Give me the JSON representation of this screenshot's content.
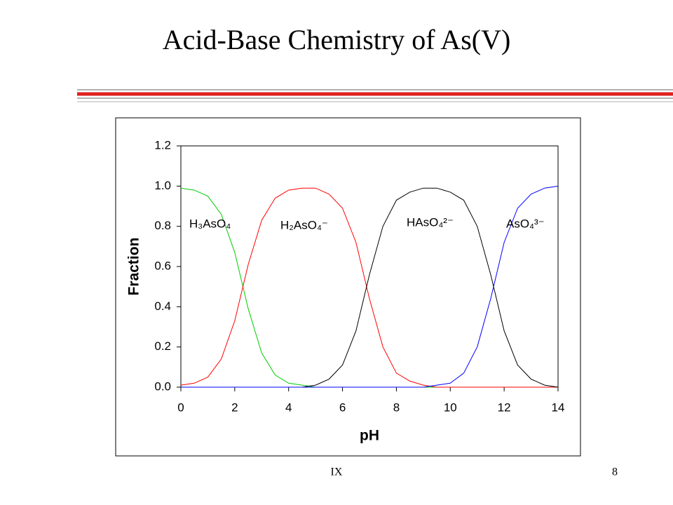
{
  "slide": {
    "title": "Acid-Base Chemistry of As(V)",
    "footer_left": "IX",
    "page_number": "8"
  },
  "chart_data": {
    "type": "line",
    "xlabel": "pH",
    "ylabel": "Fraction",
    "x": [
      0,
      0.5,
      1,
      1.5,
      2,
      2.5,
      3,
      3.5,
      4,
      4.5,
      5,
      5.5,
      6,
      6.5,
      7,
      7.5,
      8,
      8.5,
      9,
      9.5,
      10,
      10.5,
      11,
      11.5,
      12,
      12.5,
      13,
      13.5,
      14
    ],
    "series": [
      {
        "name": "H₃AsO₄",
        "color": "#00cc00",
        "values": [
          0.99,
          0.98,
          0.95,
          0.86,
          0.67,
          0.39,
          0.17,
          0.06,
          0.02,
          0.01,
          0,
          0,
          0,
          0,
          0,
          0,
          0,
          0,
          0,
          0,
          0,
          0,
          0,
          0,
          0,
          0,
          0,
          0,
          0
        ]
      },
      {
        "name": "H₂AsO₄⁻",
        "color": "#ff0000",
        "values": [
          0.01,
          0.02,
          0.05,
          0.14,
          0.33,
          0.61,
          0.83,
          0.94,
          0.98,
          0.99,
          0.99,
          0.96,
          0.89,
          0.72,
          0.44,
          0.2,
          0.07,
          0.03,
          0.01,
          0,
          0,
          0,
          0,
          0,
          0,
          0,
          0,
          0,
          0
        ]
      },
      {
        "name": "HAsO₄²⁻",
        "color": "#000000",
        "values": [
          0,
          0,
          0,
          0,
          0,
          0,
          0,
          0,
          0,
          0,
          0.01,
          0.04,
          0.11,
          0.28,
          0.56,
          0.8,
          0.93,
          0.97,
          0.99,
          0.99,
          0.97,
          0.93,
          0.8,
          0.56,
          0.28,
          0.11,
          0.04,
          0.01,
          0
        ]
      },
      {
        "name": "AsO₄³⁻",
        "color": "#0000ff",
        "values": [
          0,
          0,
          0,
          0,
          0,
          0,
          0,
          0,
          0,
          0,
          0,
          0,
          0,
          0,
          0,
          0,
          0,
          0,
          0,
          0.01,
          0.02,
          0.07,
          0.2,
          0.44,
          0.72,
          0.89,
          0.96,
          0.99,
          1
        ]
      }
    ],
    "xlim": [
      0,
      14
    ],
    "xticks": [
      0,
      2,
      4,
      6,
      8,
      10,
      12,
      14
    ],
    "ylim": [
      0,
      1.2
    ],
    "yticks": [
      {
        "value": 0,
        "label": "0.0"
      },
      0.2,
      0.4,
      0.6,
      0.8,
      {
        "value": 1,
        "label": "1.0"
      },
      1.2
    ]
  }
}
